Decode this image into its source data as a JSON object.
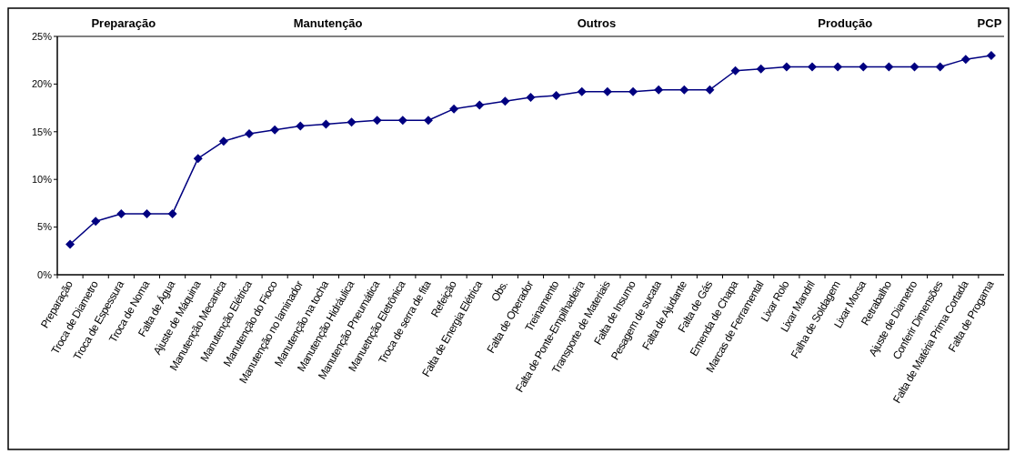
{
  "chart_data": {
    "type": "line",
    "categories": [
      "Preparação",
      "Troca de Diametro",
      "Troca de Espessura",
      "Troca de Noma",
      "Falta de Água",
      "Ajuste de Máquina",
      "Manutenção Mecanica",
      "Manutenção  Elétrica",
      "Manutenção do Fioco",
      "Manutenção no laminador",
      "Manutenção na tocha",
      "Manutenção Hidráulica",
      "Manutenção Pneumática",
      "Manuetnção Eletrônica",
      "Troca de serra de fita",
      "Refeição",
      "Falta de Energia Elétrica",
      "Obs.",
      "Falta de Operador",
      "Treinamento",
      "Falta de Ponte-Empilhadeira",
      "Transporte de Materiais",
      "Falta de Insumo",
      "Pesagem de sucata",
      "Falta de Ajudante",
      "Falta de Gás",
      "Emenda de Chapa",
      "Marcas de Ferramental",
      "Lixar Rolo",
      "Lixar Mandril",
      "Falha de Soldagem",
      "Lixar Morsa",
      "Retrabalho",
      "Ajuste de Diametro",
      "Conferir Dimensões",
      "Falta de Matéria Prima Cortada",
      "Falta de Progama"
    ],
    "series": [
      {
        "color": "#000080",
        "values": [
          3.2,
          5.6,
          6.4,
          6.4,
          6.4,
          12.2,
          14.0,
          14.8,
          15.2,
          15.6,
          15.8,
          16.0,
          16.2,
          16.2,
          16.2,
          17.4,
          17.8,
          18.2,
          18.6,
          18.8,
          19.2,
          19.2,
          19.2,
          19.4,
          19.4,
          19.4,
          21.4,
          21.6,
          21.8,
          21.8,
          21.8,
          21.8,
          21.8,
          21.8,
          21.8,
          22.6,
          23.0
        ]
      }
    ],
    "ylim": [
      0,
      25
    ],
    "yticks": [
      {
        "value": 0,
        "label": "0%"
      },
      {
        "value": 5,
        "label": "5%"
      },
      {
        "value": 10,
        "label": "10%"
      },
      {
        "value": 15,
        "label": "15%"
      },
      {
        "value": 20,
        "label": "20%"
      },
      {
        "value": 25,
        "label": "25%"
      }
    ],
    "marker": "diamond",
    "line_style": "solid",
    "grid": false,
    "annotations": [
      "Preparação",
      "Manutenção",
      "Outros",
      "Produção",
      "PCP"
    ]
  }
}
